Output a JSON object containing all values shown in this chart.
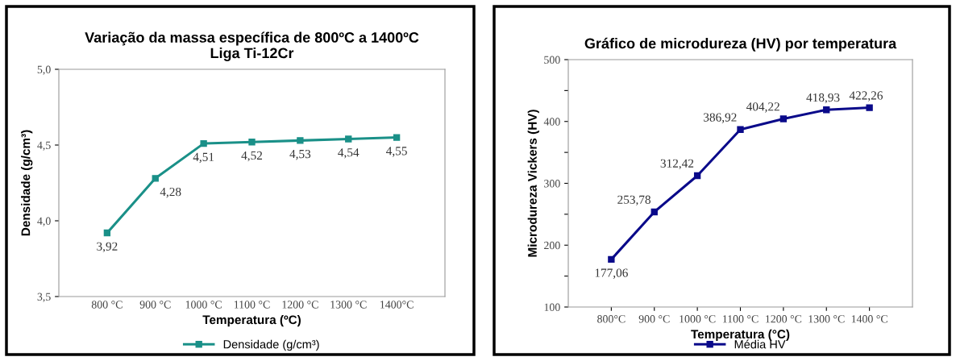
{
  "chart_data": [
    {
      "type": "line",
      "title": "Variação da massa específica de 800ºC a 1400ºC",
      "subtitle": "Liga Ti-12Cr",
      "xlabel": "Temperatura (ºC)",
      "ylabel": "Densidade (g/cm³)",
      "categories": [
        "800 °C",
        "900 °C",
        "1000 °C",
        "1100 °C",
        "1200 °C",
        "1300 °C",
        "1400°C"
      ],
      "series": [
        {
          "name": "Densidade (g/cm³)",
          "color": "#1a9088",
          "values": [
            3.92,
            4.28,
            4.51,
            4.52,
            4.53,
            4.54,
            4.55
          ],
          "value_labels": [
            "3,92",
            "4,28",
            "4,51",
            "4,52",
            "4,53",
            "4,54",
            "4,55"
          ]
        }
      ],
      "ylim": [
        3.5,
        5.0
      ],
      "yticks": [
        {
          "value": 3.5,
          "label": "3,5"
        },
        {
          "value": 4.0,
          "label": "4,0"
        },
        {
          "value": 4.5,
          "label": "4,5"
        },
        {
          "value": 5.0,
          "label": "5,0"
        }
      ],
      "grid": false,
      "legend": "bottom",
      "marker": "square",
      "line_style": "solid"
    },
    {
      "type": "line",
      "title": "Gráfico de microdureza (HV) por temperatura",
      "xlabel": "Temperatura (°C)",
      "ylabel": "Microdureza Vickers (HV)",
      "categories": [
        "800°C",
        "900 °C",
        "1000 °C",
        "1100 °C",
        "1200 °C",
        "1300 °C",
        "1400 °C"
      ],
      "series": [
        {
          "name": "Média HV",
          "color": "#0a0a8a",
          "values": [
            177.06,
            253.78,
            312.42,
            386.92,
            404.22,
            418.93,
            422.26
          ],
          "value_labels": [
            "177,06",
            "253,78",
            "312,42",
            "386,92",
            "404,22",
            "418,93",
            "422,26"
          ]
        }
      ],
      "ylim": [
        100,
        500
      ],
      "yticks": [
        100,
        {
          "value": 150,
          "label": null
        },
        200,
        {
          "value": 250,
          "label": null
        },
        300,
        {
          "value": 350,
          "label": null
        },
        400,
        {
          "value": 450,
          "label": null
        },
        500
      ],
      "grid": false,
      "legend": "bottom",
      "marker": "square",
      "line_style": "solid"
    }
  ]
}
